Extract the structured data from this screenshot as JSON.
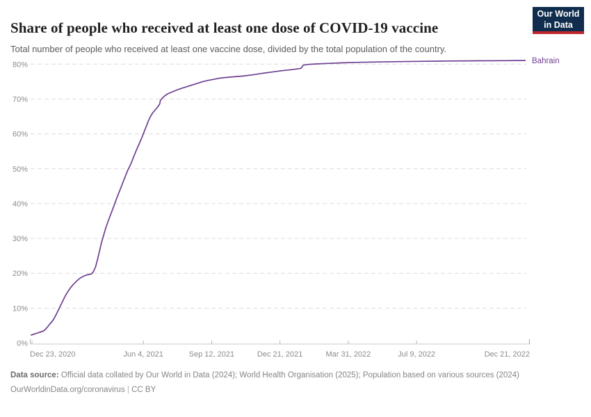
{
  "header": {
    "title": "Share of people who received at least one dose of COVID-19 vaccine",
    "subtitle": "Total number of people who received at least one vaccine dose, divided by the total population of the country.",
    "logo": {
      "line1": "Our World",
      "line2": "in Data"
    }
  },
  "chart_data": {
    "type": "line",
    "title": "Share of people who received at least one dose of COVID-19 vaccine",
    "xlabel": "",
    "ylabel": "",
    "grid": "horizontal-dashed",
    "legend_position": "end-of-line",
    "xlim": [
      "2020-12-21",
      "2022-12-22"
    ],
    "ylim": [
      0,
      83
    ],
    "y_ticks": [
      {
        "value": 0,
        "label": "0%"
      },
      {
        "value": 10,
        "label": "10%"
      },
      {
        "value": 20,
        "label": "20%"
      },
      {
        "value": 30,
        "label": "30%"
      },
      {
        "value": 40,
        "label": "40%"
      },
      {
        "value": 50,
        "label": "50%"
      },
      {
        "value": 60,
        "label": "60%"
      },
      {
        "value": 70,
        "label": "70%"
      },
      {
        "value": 80,
        "label": "80%"
      }
    ],
    "x_ticks": [
      {
        "date": "2020-12-23",
        "label": "Dec 23, 2020"
      },
      {
        "date": "2021-06-04",
        "label": "Jun 4, 2021"
      },
      {
        "date": "2021-09-12",
        "label": "Sep 12, 2021"
      },
      {
        "date": "2021-12-21",
        "label": "Dec 21, 2021"
      },
      {
        "date": "2022-03-31",
        "label": "Mar 31, 2022"
      },
      {
        "date": "2022-07-09",
        "label": "Jul 9, 2022"
      },
      {
        "date": "2022-12-21",
        "label": "Dec 21, 2022"
      }
    ],
    "series": [
      {
        "name": "Bahrain",
        "color": "#6d3e91",
        "points": [
          [
            "2020-12-22",
            2.3
          ],
          [
            "2020-12-27",
            2.6
          ],
          [
            "2021-01-02",
            3.0
          ],
          [
            "2021-01-07",
            3.3
          ],
          [
            "2021-01-10",
            3.6
          ],
          [
            "2021-01-14",
            4.4
          ],
          [
            "2021-01-18",
            5.4
          ],
          [
            "2021-01-23",
            6.6
          ],
          [
            "2021-01-27",
            8.0
          ],
          [
            "2021-01-30",
            9.2
          ],
          [
            "2021-02-02",
            10.4
          ],
          [
            "2021-02-06",
            12.0
          ],
          [
            "2021-02-10",
            13.6
          ],
          [
            "2021-02-14",
            14.9
          ],
          [
            "2021-02-18",
            16.0
          ],
          [
            "2021-02-22",
            16.9
          ],
          [
            "2021-02-26",
            17.7
          ],
          [
            "2021-03-02",
            18.4
          ],
          [
            "2021-03-06",
            18.9
          ],
          [
            "2021-03-10",
            19.3
          ],
          [
            "2021-03-15",
            19.6
          ],
          [
            "2021-03-20",
            19.8
          ],
          [
            "2021-03-23",
            20.5
          ],
          [
            "2021-03-26",
            21.8
          ],
          [
            "2021-03-29",
            24.0
          ],
          [
            "2021-04-01",
            26.5
          ],
          [
            "2021-04-04",
            29.0
          ],
          [
            "2021-04-07",
            31.0
          ],
          [
            "2021-04-10",
            33.0
          ],
          [
            "2021-04-14",
            35.2
          ],
          [
            "2021-04-18",
            37.3
          ],
          [
            "2021-04-22",
            39.4
          ],
          [
            "2021-04-26",
            41.5
          ],
          [
            "2021-04-30",
            43.5
          ],
          [
            "2021-05-04",
            45.5
          ],
          [
            "2021-05-08",
            47.5
          ],
          [
            "2021-05-12",
            49.5
          ],
          [
            "2021-05-17",
            51.5
          ],
          [
            "2021-05-21",
            53.5
          ],
          [
            "2021-05-25",
            55.4
          ],
          [
            "2021-05-29",
            57.2
          ],
          [
            "2021-06-02",
            59.0
          ],
          [
            "2021-06-06",
            61.0
          ],
          [
            "2021-06-09",
            62.5
          ],
          [
            "2021-06-12",
            64.0
          ],
          [
            "2021-06-15",
            65.2
          ],
          [
            "2021-06-18",
            66.1
          ],
          [
            "2021-06-22",
            67.0
          ],
          [
            "2021-06-26",
            68.0
          ],
          [
            "2021-06-28",
            68.6
          ],
          [
            "2021-06-29",
            69.6
          ],
          [
            "2021-07-02",
            70.3
          ],
          [
            "2021-07-06",
            71.0
          ],
          [
            "2021-07-10",
            71.5
          ],
          [
            "2021-07-16",
            72.0
          ],
          [
            "2021-07-22",
            72.5
          ],
          [
            "2021-07-29",
            73.0
          ],
          [
            "2021-08-06",
            73.5
          ],
          [
            "2021-08-14",
            74.0
          ],
          [
            "2021-08-22",
            74.5
          ],
          [
            "2021-08-30",
            75.0
          ],
          [
            "2021-09-08",
            75.4
          ],
          [
            "2021-09-16",
            75.7
          ],
          [
            "2021-09-24",
            76.0
          ],
          [
            "2021-10-04",
            76.2
          ],
          [
            "2021-10-16",
            76.4
          ],
          [
            "2021-10-28",
            76.6
          ],
          [
            "2021-11-10",
            76.9
          ],
          [
            "2021-11-23",
            77.3
          ],
          [
            "2021-12-08",
            77.7
          ],
          [
            "2021-12-23",
            78.1
          ],
          [
            "2022-01-06",
            78.4
          ],
          [
            "2022-01-18",
            78.7
          ],
          [
            "2022-01-21",
            78.85
          ],
          [
            "2022-01-24",
            79.7
          ],
          [
            "2022-01-30",
            79.9
          ],
          [
            "2022-02-12",
            80.05
          ],
          [
            "2022-02-28",
            80.2
          ],
          [
            "2022-03-20",
            80.35
          ],
          [
            "2022-04-09",
            80.5
          ],
          [
            "2022-05-05",
            80.6
          ],
          [
            "2022-06-04",
            80.7
          ],
          [
            "2022-07-10",
            80.8
          ],
          [
            "2022-08-20",
            80.9
          ],
          [
            "2022-10-04",
            80.95
          ],
          [
            "2022-11-14",
            81.0
          ],
          [
            "2022-12-15",
            81.05
          ]
        ]
      }
    ],
    "colors": {
      "line": "#6d3e91",
      "gridline": "#dcdcdc",
      "axis": "#c8c8c8",
      "tick": "#b4b4b4",
      "axis_text": "#8b8b8d"
    }
  },
  "footer": {
    "source_label": "Data source:",
    "source_text": " Official data collated by Our World in Data (2024); World Health Organisation (2025); Population based on various sources (2024)",
    "link": "OurWorldinData.org/coronavirus",
    "separator": "|",
    "license": "CC BY"
  }
}
